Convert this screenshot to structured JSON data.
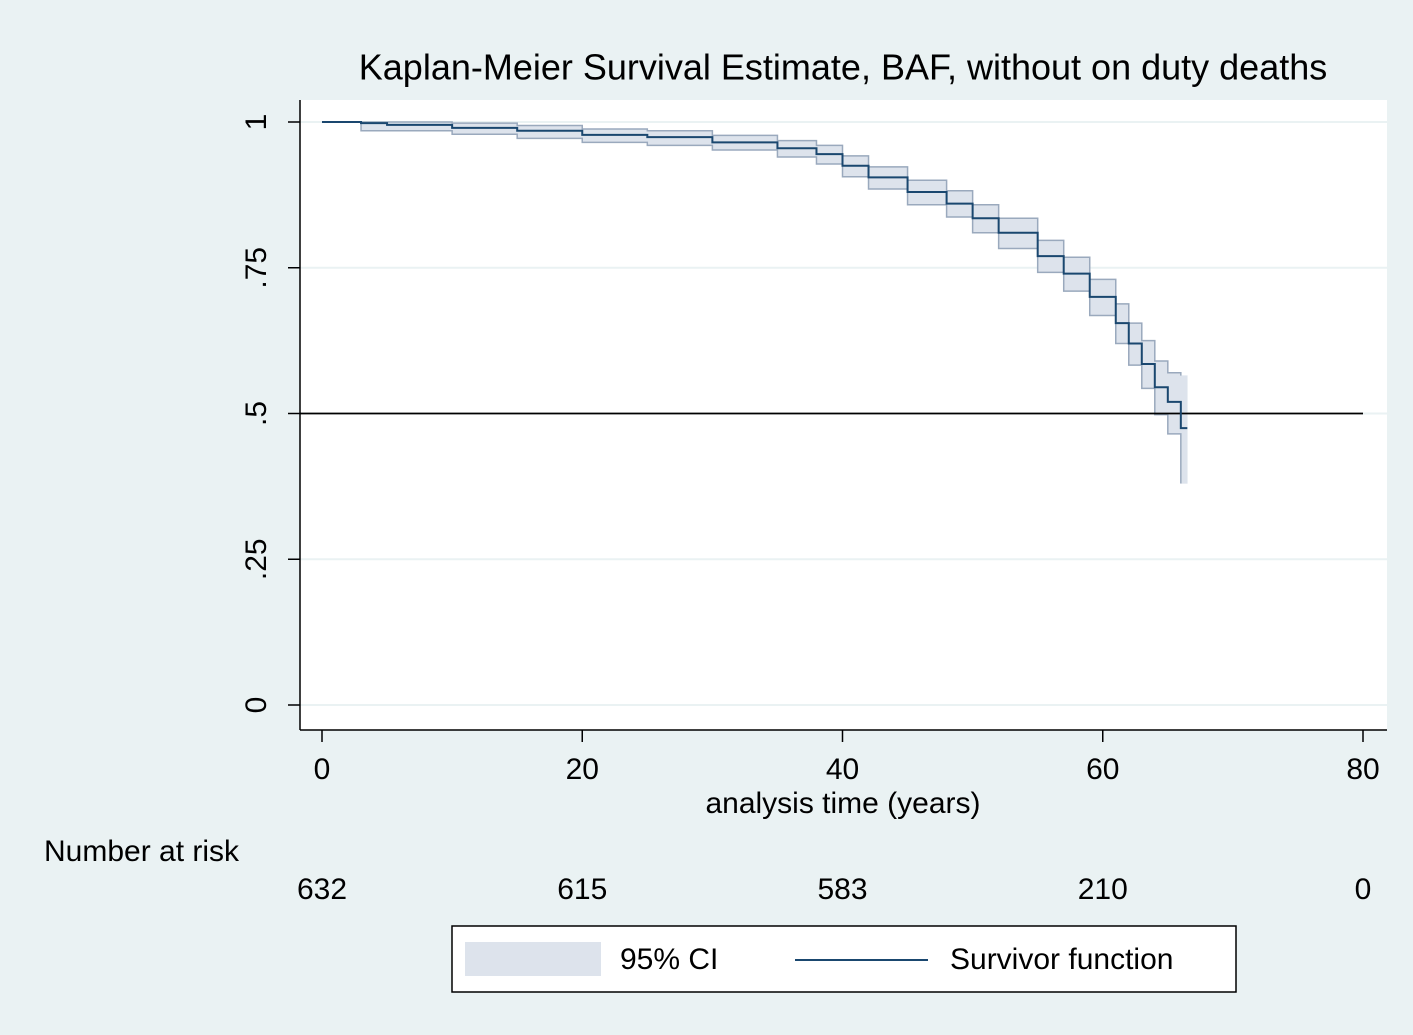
{
  "chart_data": {
    "type": "step",
    "title": "Kaplan-Meier Survival Estimate, BAF, without on duty deaths",
    "x_label": "analysis time (years)",
    "x": [
      0,
      3,
      5,
      10,
      15,
      20,
      25,
      30,
      35,
      38,
      40,
      42,
      45,
      48,
      50,
      52,
      55,
      57,
      59,
      61,
      62,
      63,
      64,
      65,
      66
    ],
    "series": [
      {
        "name": "Survivor function",
        "color": "#1a476f",
        "values": [
          1,
          0.998,
          0.995,
          0.99,
          0.985,
          0.978,
          0.974,
          0.965,
          0.955,
          0.945,
          0.925,
          0.905,
          0.88,
          0.86,
          0.835,
          0.81,
          0.77,
          0.74,
          0.7,
          0.655,
          0.62,
          0.585,
          0.545,
          0.52,
          0.475
        ]
      }
    ],
    "ci": {
      "name": "95% CI",
      "color": "#dde3ec",
      "edge": "#9aa9bd",
      "upper": [
        1,
        1,
        1,
        0.998,
        0.994,
        0.988,
        0.985,
        0.977,
        0.968,
        0.96,
        0.942,
        0.923,
        0.9,
        0.882,
        0.858,
        0.835,
        0.797,
        0.768,
        0.73,
        0.688,
        0.655,
        0.625,
        0.59,
        0.57,
        0.565
      ],
      "lower": [
        1,
        0.985,
        0.985,
        0.979,
        0.972,
        0.965,
        0.96,
        0.952,
        0.94,
        0.928,
        0.906,
        0.885,
        0.858,
        0.837,
        0.81,
        0.783,
        0.742,
        0.71,
        0.668,
        0.62,
        0.583,
        0.543,
        0.498,
        0.465,
        0.38
      ]
    },
    "reference_line": 0.5,
    "xlim": [
      0,
      80
    ],
    "xticks": [
      0,
      20,
      40,
      60,
      80
    ],
    "ylim": [
      0,
      1
    ],
    "yticks": [
      0,
      {
        "value": 0.25,
        "label": ".25"
      },
      {
        "value": 0.5,
        "label": ".5"
      },
      {
        "value": 0.75,
        "label": ".75"
      },
      1
    ],
    "grid": true,
    "risk_table": {
      "label": "Number at risk",
      "values": [
        632,
        615,
        583,
        210,
        0
      ]
    },
    "legend": "bottom"
  }
}
